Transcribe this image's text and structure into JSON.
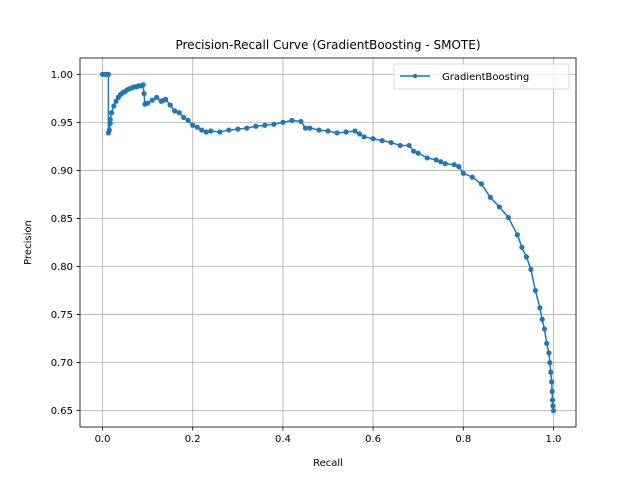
{
  "chart_data": {
    "type": "line",
    "title": "Precision-Recall Curve (GradientBoosting - SMOTE)",
    "xlabel": "Recall",
    "ylabel": "Precision",
    "xlim": [
      -0.05,
      1.05
    ],
    "ylim": [
      0.633,
      1.017
    ],
    "xticks": [
      "0.0",
      "0.2",
      "0.4",
      "0.6",
      "0.8",
      "1.0"
    ],
    "yticks": [
      "0.65",
      "0.70",
      "0.75",
      "0.80",
      "0.85",
      "0.90",
      "0.95",
      "1.00"
    ],
    "grid": true,
    "legend_position": "upper right",
    "color": "#1f77b4",
    "series": [
      {
        "name": "GradientBoosting",
        "x": [
          0.0,
          0.005,
          0.01,
          0.013,
          0.013,
          0.015,
          0.017,
          0.017,
          0.02,
          0.025,
          0.03,
          0.035,
          0.04,
          0.045,
          0.05,
          0.055,
          0.06,
          0.065,
          0.07,
          0.075,
          0.08,
          0.085,
          0.09,
          0.092,
          0.094,
          0.1,
          0.11,
          0.12,
          0.13,
          0.135,
          0.14,
          0.15,
          0.16,
          0.17,
          0.18,
          0.19,
          0.2,
          0.21,
          0.22,
          0.23,
          0.24,
          0.26,
          0.28,
          0.3,
          0.32,
          0.34,
          0.36,
          0.38,
          0.4,
          0.42,
          0.44,
          0.45,
          0.46,
          0.48,
          0.5,
          0.52,
          0.54,
          0.56,
          0.57,
          0.58,
          0.6,
          0.62,
          0.64,
          0.66,
          0.68,
          0.69,
          0.7,
          0.72,
          0.74,
          0.75,
          0.76,
          0.78,
          0.79,
          0.8,
          0.82,
          0.84,
          0.86,
          0.88,
          0.9,
          0.92,
          0.93,
          0.94,
          0.95,
          0.96,
          0.97,
          0.975,
          0.98,
          0.985,
          0.99,
          0.992,
          0.994,
          0.996,
          0.997,
          0.998,
          0.999,
          1.0
        ],
        "y": [
          1.0,
          1.0,
          1.0,
          1.0,
          0.939,
          0.942,
          0.949,
          0.953,
          0.96,
          0.967,
          0.972,
          0.976,
          0.979,
          0.981,
          0.982,
          0.984,
          0.985,
          0.986,
          0.987,
          0.987,
          0.988,
          0.988,
          0.989,
          0.98,
          0.969,
          0.97,
          0.973,
          0.976,
          0.972,
          0.973,
          0.974,
          0.968,
          0.962,
          0.96,
          0.955,
          0.952,
          0.947,
          0.945,
          0.942,
          0.94,
          0.941,
          0.94,
          0.942,
          0.943,
          0.944,
          0.946,
          0.947,
          0.948,
          0.95,
          0.952,
          0.951,
          0.944,
          0.944,
          0.942,
          0.941,
          0.939,
          0.94,
          0.941,
          0.938,
          0.935,
          0.933,
          0.931,
          0.929,
          0.926,
          0.926,
          0.92,
          0.918,
          0.913,
          0.911,
          0.909,
          0.907,
          0.906,
          0.904,
          0.897,
          0.893,
          0.886,
          0.872,
          0.862,
          0.851,
          0.833,
          0.82,
          0.81,
          0.797,
          0.775,
          0.757,
          0.745,
          0.735,
          0.72,
          0.71,
          0.7,
          0.69,
          0.68,
          0.67,
          0.661,
          0.655,
          0.65
        ]
      }
    ]
  }
}
